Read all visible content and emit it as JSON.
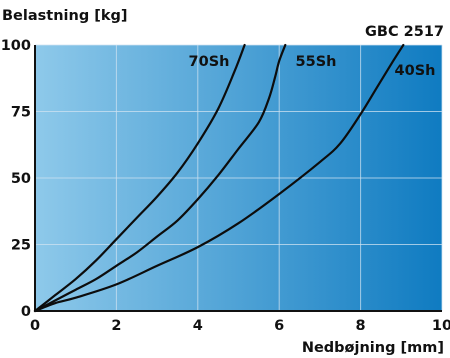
{
  "chart_data": {
    "type": "line",
    "title": "GBC 2517",
    "ylabel": "Belastning [kg]",
    "xlabel": "Nedbøjning [mm]",
    "xlim": [
      0,
      10
    ],
    "ylim": [
      0,
      100
    ],
    "x_ticks": [
      "0",
      "2",
      "4",
      "6",
      "8",
      "10"
    ],
    "y_ticks": [
      "0",
      "25",
      "50",
      "75",
      "100"
    ],
    "grid": true,
    "background": "blue gradient, light at left to dark at right",
    "series": [
      {
        "name": "70Sh",
        "x": [
          0,
          0.5,
          1,
          1.5,
          2,
          2.5,
          3,
          3.5,
          4,
          4.5,
          4.9,
          5.15
        ],
        "y": [
          0,
          6,
          12,
          19,
          27,
          35,
          43,
          52,
          63,
          76,
          90,
          100
        ]
      },
      {
        "name": "55Sh",
        "x": [
          0,
          0.5,
          1,
          1.5,
          2,
          2.5,
          3,
          3.5,
          4,
          4.5,
          5,
          5.5,
          5.75,
          5.9,
          6,
          6.15
        ],
        "y": [
          0,
          4,
          8,
          12,
          17,
          22,
          28,
          34,
          42,
          51,
          61,
          71,
          80,
          88,
          94,
          100
        ]
      },
      {
        "name": "40Sh",
        "x": [
          0,
          0.5,
          1,
          2,
          3,
          4,
          5,
          6,
          7,
          7.5,
          8,
          8.4,
          8.8,
          9.05
        ],
        "y": [
          0,
          3,
          5,
          10,
          17,
          24,
          33,
          44,
          56,
          63,
          74,
          84,
          94,
          100
        ]
      }
    ],
    "colors": {
      "line": "#0d0d0d",
      "grid": "#cfe3f2",
      "gradient_start": "#8ec9ea",
      "gradient_end": "#0f7bc1"
    }
  }
}
